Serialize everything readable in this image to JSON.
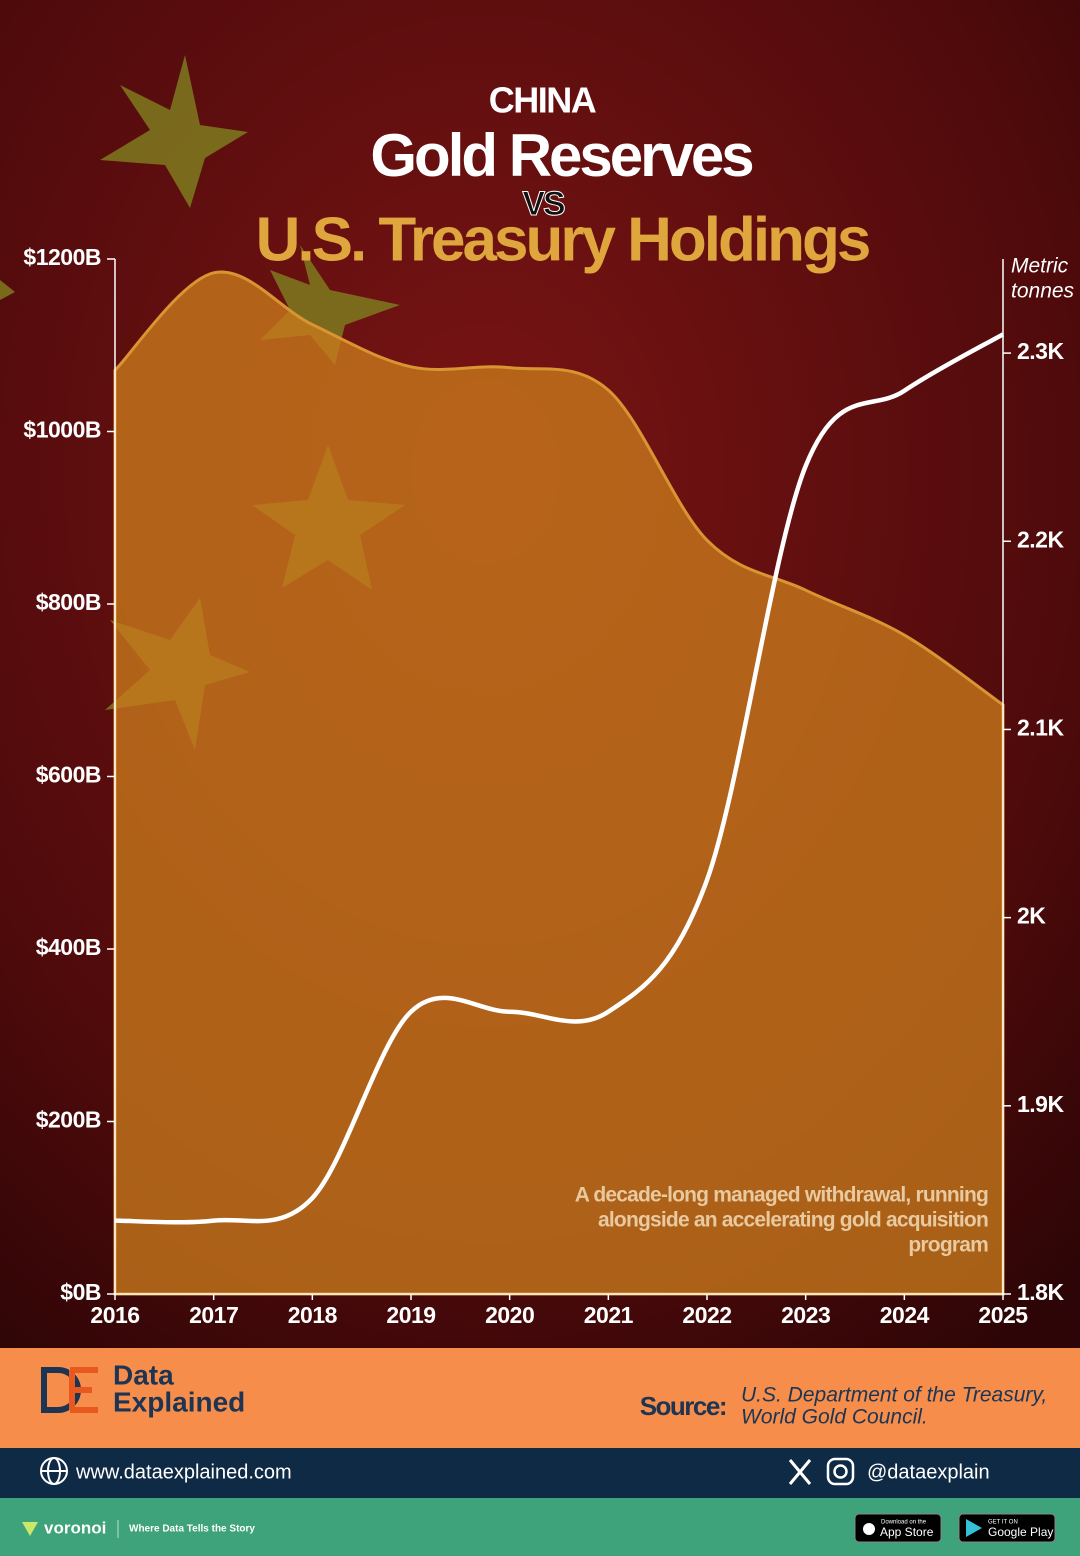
{
  "chart_data": {
    "type": "combo",
    "title": "CHINA",
    "subtitle": [
      "Gold Reserves",
      "VS",
      "U.S. Treasury Holdings"
    ],
    "x": [
      2016,
      2017,
      2018,
      2019,
      2020,
      2021,
      2022,
      2023,
      2024,
      2025
    ],
    "xlim": [
      2016,
      2025
    ],
    "xticks": [
      2016,
      2017,
      2018,
      2019,
      2020,
      2021,
      2022,
      2023,
      2024,
      2025
    ],
    "series": [
      {
        "type": "area",
        "color": "#c97a1c",
        "axis": "y",
        "values": [
          1071,
          1184,
          1124,
          1075,
          1074,
          1048,
          874,
          816,
          764,
          683
        ]
      },
      {
        "type": "line",
        "color": "#ffffff",
        "axis": "y2",
        "values": [
          1839,
          1839,
          1851,
          1950,
          1950,
          1950,
          2020,
          2240,
          2280,
          2310
        ]
      }
    ],
    "ylim": [
      0,
      1200
    ],
    "yticks": [
      {
        "value": 0,
        "label": "$0B"
      },
      {
        "value": 200,
        "label": "$200B"
      },
      {
        "value": 400,
        "label": "$400B"
      },
      {
        "value": 600,
        "label": "$600B"
      },
      {
        "value": 800,
        "label": "$800B"
      },
      {
        "value": 1000,
        "label": "$1000B"
      },
      {
        "value": 1200,
        "label": "$1200B"
      }
    ],
    "y2lim": [
      1800,
      2350
    ],
    "y2ticks": [
      {
        "value": 1800,
        "label": "1.8K"
      },
      {
        "value": 1900,
        "label": "1.9K"
      },
      {
        "value": 2000,
        "label": "2K"
      },
      {
        "value": 2100,
        "label": "2.1K"
      },
      {
        "value": 2200,
        "label": "2.2K"
      },
      {
        "value": 2300,
        "label": "2.3K"
      }
    ],
    "y2label": [
      "Metric",
      "tonnes"
    ],
    "annotation": [
      "A decade-long managed withdrawal, running",
      "alongside an accelerating gold acquisition",
      "program"
    ],
    "grid": false
  },
  "footer": {
    "brand": [
      "Data",
      "Explained"
    ],
    "source_label": "Source:",
    "source": [
      "U.S. Department of the Treasury,",
      "World Gold Council."
    ],
    "website": "www.dataexplained.com",
    "handle": "@dataexplain",
    "partner": "voronoi",
    "tagline": "Where Data Tells the Story",
    "app_store": [
      "Download on the",
      "App Store"
    ],
    "google_play": [
      "GET IT ON",
      "Google Play"
    ]
  }
}
